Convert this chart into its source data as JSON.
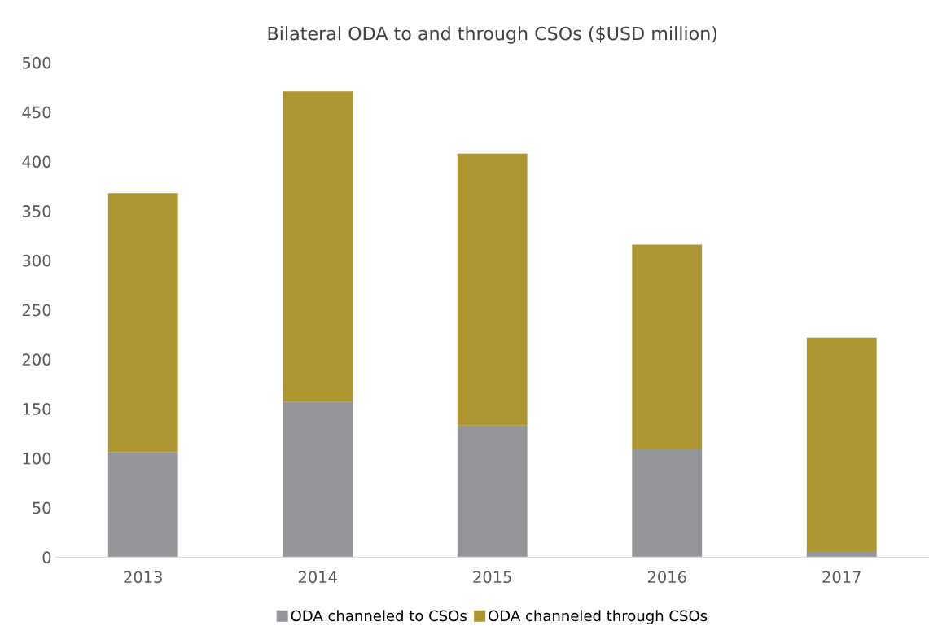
{
  "chart_data": {
    "type": "bar",
    "title": "Bilateral ODA to and through CSOs ($USD million)",
    "categories": [
      "2013",
      "2014",
      "2015",
      "2016",
      "2017"
    ],
    "stacked": true,
    "series": [
      {
        "name": "ODA channeled to CSOs",
        "color": "#939598",
        "values": [
          106,
          157,
          133,
          109,
          6
        ]
      },
      {
        "name": "ODA channeled through CSOs",
        "color": "#ad9631",
        "values": [
          262,
          314,
          275,
          207,
          216
        ]
      }
    ],
    "ylim": [
      0,
      500
    ],
    "yticks": [
      0,
      50,
      100,
      150,
      200,
      250,
      300,
      350,
      400,
      450,
      500
    ],
    "grid": false,
    "legend": "bottom"
  }
}
